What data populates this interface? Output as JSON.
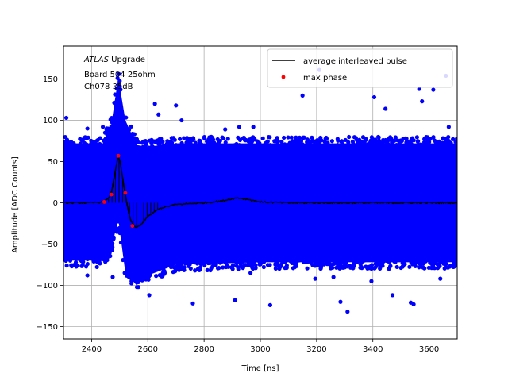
{
  "chart_data": {
    "type": "scatter",
    "title": "",
    "xlabel": "Time [ns]",
    "ylabel": "Amplitude [ADC Counts]",
    "xlim": [
      2300,
      3700
    ],
    "ylim": [
      -165,
      190
    ],
    "xticks": [
      2400,
      2600,
      2800,
      3000,
      3200,
      3400,
      3600
    ],
    "yticks": [
      -150,
      -100,
      -50,
      0,
      50,
      100,
      150
    ],
    "grid": true,
    "legend_position": "top-right",
    "annotation": {
      "italic": "ATLAS",
      "rest": " Upgrade",
      "line2": " Board 504 25ohm",
      "line3": " Ch078 35dB"
    },
    "series": [
      {
        "name": "average interleaved pulse",
        "style": "line",
        "color": "#000000",
        "x": [
          2300,
          2400,
          2440,
          2460,
          2470,
          2480,
          2490,
          2495,
          2500,
          2510,
          2520,
          2530,
          2540,
          2550,
          2560,
          2580,
          2600,
          2640,
          2700,
          2800,
          2860,
          2900,
          2920,
          2960,
          3000,
          3100,
          3200,
          3400,
          3600,
          3700
        ],
        "y": [
          0,
          0,
          1,
          5,
          12,
          30,
          50,
          56,
          52,
          30,
          10,
          -10,
          -22,
          -28,
          -30,
          -25,
          -17,
          -7,
          -2,
          0,
          2,
          5,
          6,
          4,
          1,
          0,
          0,
          0,
          0,
          0
        ]
      },
      {
        "name": "max phase",
        "style": "points",
        "color": "#ff0000",
        "x": [
          2445,
          2470,
          2495,
          2520,
          2545
        ],
        "y": [
          1,
          10,
          57,
          12,
          -28
        ]
      },
      {
        "name": "",
        "style": "noise-band",
        "color": "#0000ff",
        "x": [
          2300,
          2440,
          2470,
          2495,
          2520,
          2560,
          2600,
          2700,
          3000,
          3700
        ],
        "y_upper": [
          72,
          72,
          95,
          152,
          100,
          70,
          68,
          72,
          72,
          72
        ],
        "y_lower": [
          -70,
          -70,
          -55,
          -20,
          -85,
          -100,
          -88,
          -75,
          -72,
          -72
        ]
      },
      {
        "name": "",
        "style": "outliers",
        "color": "#0000ff",
        "x": [
          2310,
          2385,
          2440,
          2455,
          2520,
          2625,
          2638,
          2700,
          2720,
          2875,
          2925,
          2975,
          3150,
          3210,
          3405,
          3445,
          3565,
          3575,
          3615,
          3660,
          3670,
          2605,
          2760,
          2910,
          3035,
          3195,
          3285,
          3310,
          3395,
          3470,
          3535,
          3545,
          3640,
          2385,
          2475,
          2580,
          2965,
          3260
        ],
        "y": [
          103,
          90,
          92,
          90,
          90,
          120,
          107,
          118,
          100,
          89,
          92,
          92,
          130,
          161,
          128,
          114,
          138,
          123,
          137,
          154,
          92,
          -112,
          -122,
          -118,
          -124,
          -92,
          -120,
          -132,
          -95,
          -112,
          -121,
          -123,
          -92,
          -88,
          -90,
          -94,
          -85,
          -90
        ]
      }
    ]
  }
}
